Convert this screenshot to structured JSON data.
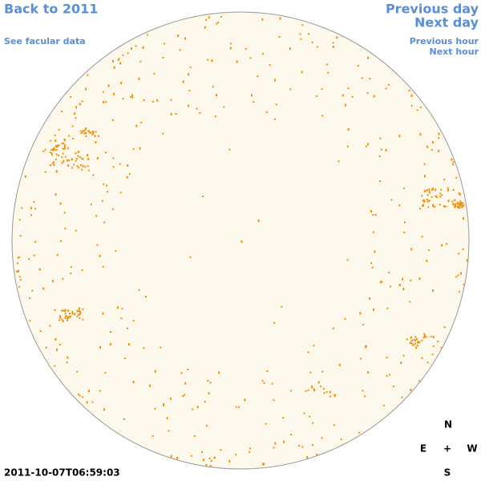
{
  "navigation": {
    "back": "Back to 2011",
    "facular": "See facular data",
    "previous_day": "Previous day",
    "next_day": "Next day",
    "previous_hour": "Previous hour",
    "next_hour": "Next hour"
  },
  "timestamp": "2011-10-07T06:59:03",
  "compass": {
    "north": "N",
    "east": "E",
    "center": "+",
    "west": "W",
    "south": "S"
  }
}
